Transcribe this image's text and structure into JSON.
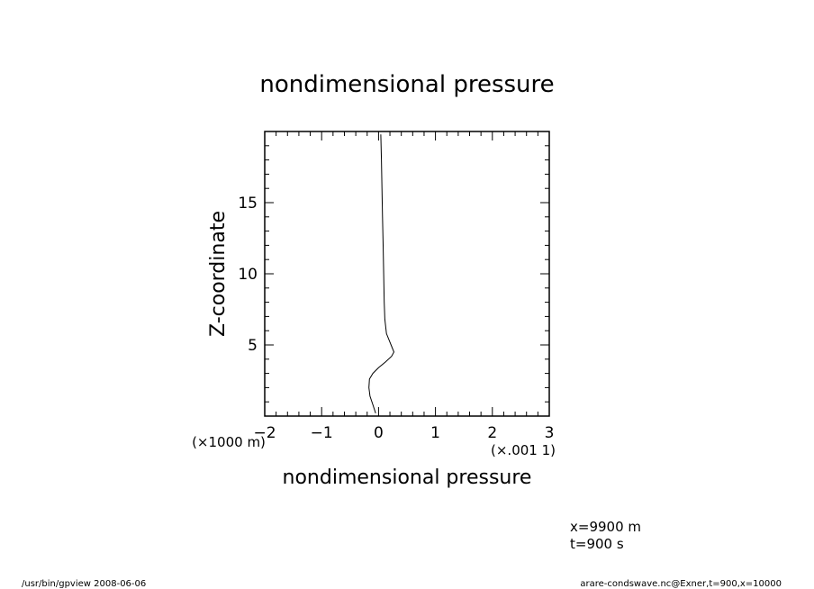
{
  "chart_data": {
    "type": "line",
    "title": "nondimensional pressure",
    "xlabel": "nondimensional pressure",
    "ylabel": "Z-coordinate",
    "x_scale_label": "(×.001 1)",
    "y_scale_label": "(×1000 m)",
    "xlim": [
      -2,
      3
    ],
    "ylim": [
      0,
      20
    ],
    "x_ticks": [
      -2,
      -1,
      0,
      1,
      2,
      3
    ],
    "x_tick_labels": [
      "−2",
      "−1",
      "0",
      "1",
      "2",
      "3"
    ],
    "y_ticks": [
      5,
      10,
      15
    ],
    "y_tick_labels": [
      "5",
      "10",
      "15"
    ],
    "grid": false,
    "series": [
      {
        "x": [
          -0.05,
          -0.1,
          -0.15,
          -0.17,
          -0.16,
          -0.1,
          0.0,
          0.12,
          0.23,
          0.27,
          0.22,
          0.14,
          0.11,
          0.1,
          0.09,
          0.08,
          0.07,
          0.06,
          0.05,
          0.04
        ],
        "y": [
          0.2,
          0.8,
          1.4,
          2.0,
          2.6,
          3.0,
          3.4,
          3.8,
          4.2,
          4.5,
          5.0,
          5.8,
          6.8,
          8.0,
          10.0,
          12.0,
          14.0,
          16.0,
          18.0,
          19.8
        ]
      }
    ]
  },
  "annotations": {
    "position_x": "x=9900 m",
    "time": "t=900 s"
  },
  "footer": {
    "left": "/usr/bin/gpview  2008-06-06",
    "right": "arare-condswave.nc@Exner,t=900,x=10000"
  }
}
